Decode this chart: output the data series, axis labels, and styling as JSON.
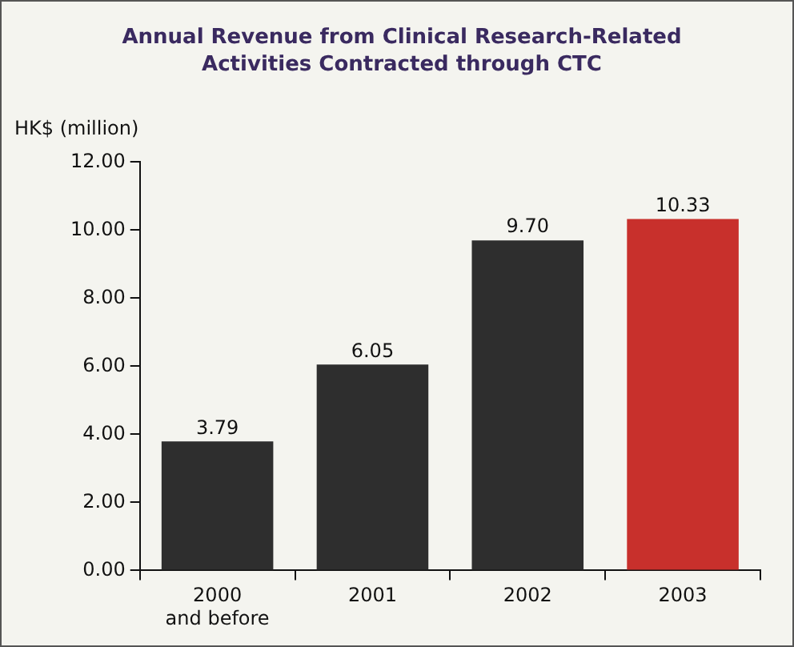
{
  "chart_data": {
    "type": "bar",
    "title": "Annual Revenue from Clinical Research-Related Activities Contracted through CTC",
    "ylabel": "HK$ (million)",
    "categories": [
      "2000 and before",
      "2001",
      "2002",
      "2003"
    ],
    "values": [
      3.79,
      6.05,
      9.7,
      10.33
    ],
    "colors": [
      "#2e2e2e",
      "#2e2e2e",
      "#2e2e2e",
      "#c8302c"
    ],
    "value_labels": [
      "3.79",
      "6.05",
      "9.70",
      "10.33"
    ],
    "ylim": [
      0,
      12
    ],
    "yticks": [
      {
        "value": 0,
        "label": "0.00"
      },
      {
        "value": 2,
        "label": "2.00"
      },
      {
        "value": 4,
        "label": "4.00"
      },
      {
        "value": 6,
        "label": "6.00"
      },
      {
        "value": 8,
        "label": "8.00"
      },
      {
        "value": 10,
        "label": "10.00"
      },
      {
        "value": 12,
        "label": "12.00"
      }
    ],
    "grid": false,
    "legend": false
  }
}
